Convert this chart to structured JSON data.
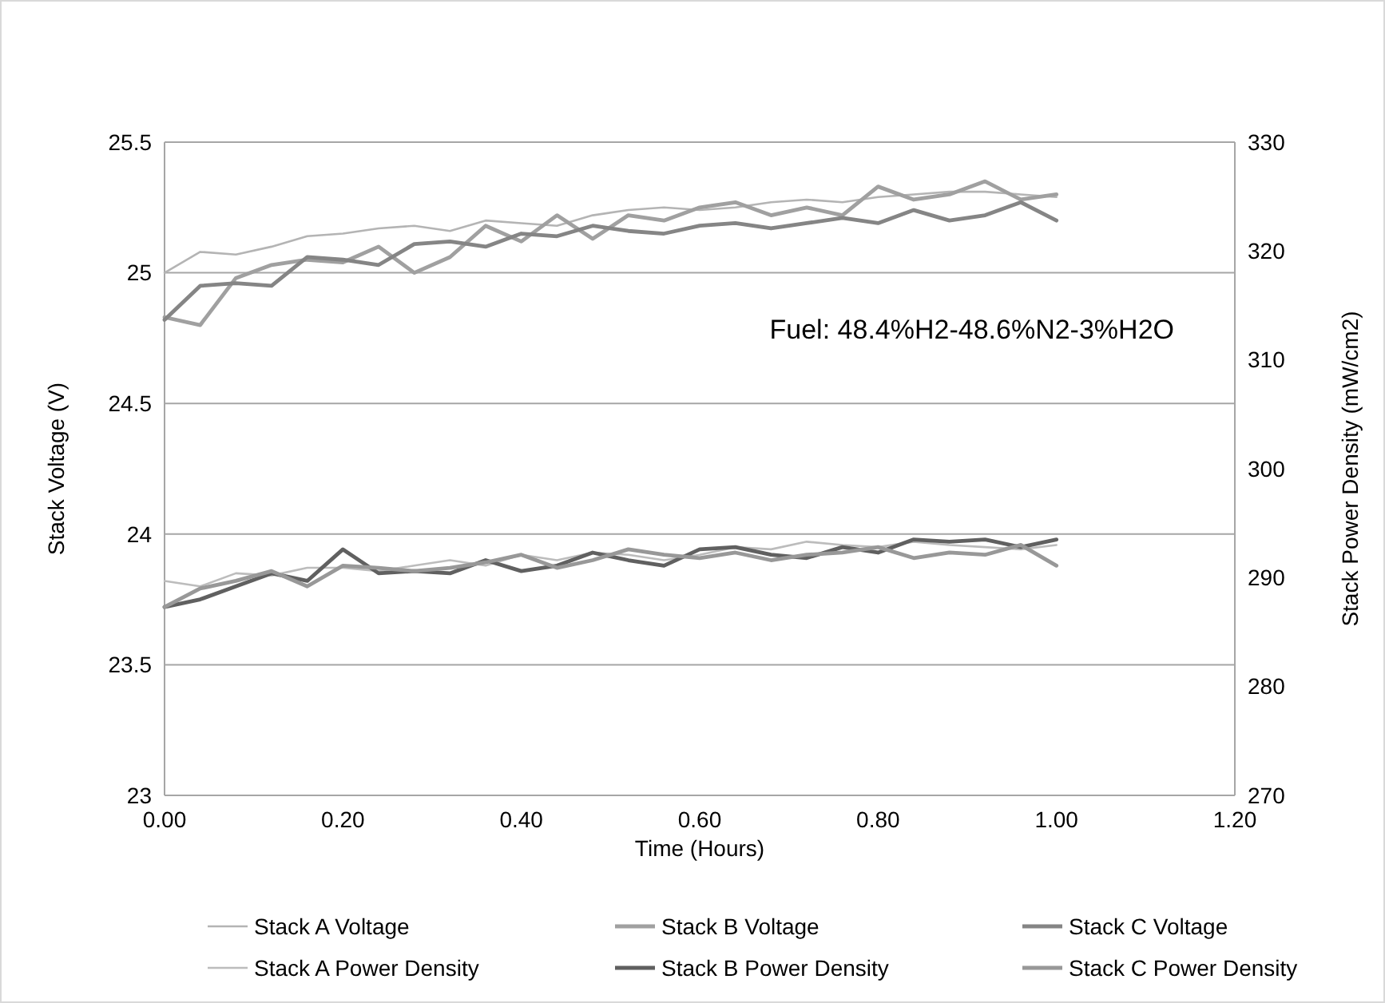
{
  "chart_data": {
    "type": "line",
    "xlabel": "Time (Hours)",
    "ylabel": "Stack Voltage (V)",
    "y2label": "Stack Power Density (mW/cm2)",
    "annotations": [
      "Fuel: 48.4%H2-48.6%N2-3%H2O"
    ],
    "x": [
      0,
      0.04,
      0.08,
      0.12,
      0.16,
      0.2,
      0.24,
      0.28,
      0.32,
      0.36,
      0.4,
      0.44,
      0.48,
      0.52,
      0.56,
      0.6,
      0.64,
      0.68,
      0.72,
      0.76,
      0.8,
      0.84,
      0.88,
      0.92,
      0.96,
      1.0
    ],
    "xlim": [
      0,
      1.2
    ],
    "xticks": [
      {
        "value": 0,
        "label": "0.00"
      },
      {
        "value": 0.2,
        "label": "0.20"
      },
      {
        "value": 0.4,
        "label": "0.40"
      },
      {
        "value": 0.6,
        "label": "0.60"
      },
      {
        "value": 0.8,
        "label": "0.80"
      },
      {
        "value": 1,
        "label": "1.00"
      },
      {
        "value": 1.2,
        "label": "1.20"
      }
    ],
    "ylim": [
      23,
      25.5
    ],
    "yticks": [
      23,
      23.5,
      24,
      24.5,
      25,
      25.5
    ],
    "y2lim": [
      270,
      330
    ],
    "y2ticks": [
      270,
      280,
      290,
      300,
      310,
      320,
      330
    ],
    "grid": "y",
    "legend": "bottom",
    "marker": "none",
    "line_style": "solid",
    "series": [
      {
        "name": "Stack A Voltage",
        "color": "#b4b4b4",
        "values": [
          25.0,
          25.08,
          25.07,
          25.1,
          25.14,
          25.15,
          25.17,
          25.18,
          25.16,
          25.2,
          25.19,
          25.18,
          25.22,
          25.24,
          25.25,
          25.24,
          25.25,
          25.27,
          25.28,
          25.27,
          25.29,
          25.3,
          25.31,
          25.31,
          25.3,
          25.29
        ]
      },
      {
        "name": "Stack B Voltage",
        "color": "#a0a0a0",
        "values": [
          24.83,
          24.8,
          24.98,
          25.03,
          25.05,
          25.04,
          25.1,
          25.0,
          25.06,
          25.18,
          25.12,
          25.22,
          25.13,
          25.22,
          25.2,
          25.25,
          25.27,
          25.22,
          25.25,
          25.22,
          25.33,
          25.28,
          25.3,
          25.35,
          25.28,
          25.3
        ]
      },
      {
        "name": "Stack C Voltage",
        "color": "#858585",
        "values": [
          24.82,
          24.95,
          24.96,
          24.95,
          25.06,
          25.05,
          25.03,
          25.11,
          25.12,
          25.1,
          25.15,
          25.14,
          25.18,
          25.16,
          25.15,
          25.18,
          25.19,
          25.17,
          25.19,
          25.21,
          25.19,
          25.24,
          25.2,
          25.22,
          25.27,
          25.2
        ]
      },
      {
        "name": "Stack A Power Density",
        "color": "#bcbcbc",
        "axis": "y2",
        "values": [
          289.7,
          289.2,
          290.4,
          290.2,
          290.9,
          290.9,
          290.6,
          291.1,
          291.6,
          291.1,
          292.1,
          291.6,
          292.3,
          292.1,
          291.6,
          292.1,
          292.8,
          292.6,
          293.3,
          293.0,
          292.8,
          293.3,
          293.0,
          292.8,
          292.6,
          293.0
        ]
      },
      {
        "name": "Stack B Power Density",
        "color": "#606060",
        "axis": "y2",
        "values": [
          287.3,
          288.0,
          289.2,
          290.4,
          289.7,
          292.6,
          290.4,
          290.6,
          290.4,
          291.6,
          290.6,
          291.1,
          292.3,
          291.6,
          291.1,
          292.6,
          292.8,
          292.1,
          291.8,
          292.8,
          292.3,
          293.5,
          293.3,
          293.5,
          292.8,
          293.5
        ]
      },
      {
        "name": "Stack C Power Density",
        "color": "#989898",
        "axis": "y2",
        "values": [
          287.3,
          289.0,
          289.7,
          290.6,
          289.2,
          291.1,
          290.9,
          290.6,
          290.9,
          291.4,
          292.1,
          290.9,
          291.6,
          292.6,
          292.1,
          291.8,
          292.3,
          291.6,
          292.1,
          292.3,
          292.8,
          291.8,
          292.3,
          292.1,
          293.0,
          291.1
        ]
      }
    ]
  }
}
